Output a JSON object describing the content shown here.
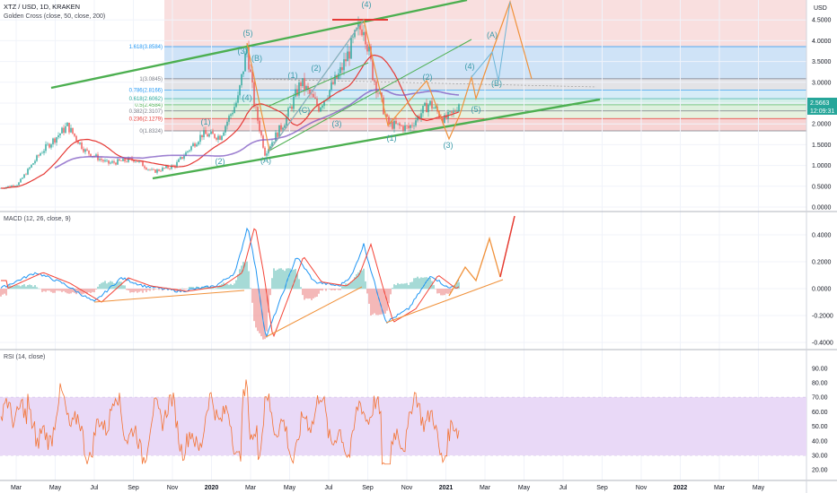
{
  "header": {
    "symbol": "XTZ / USD, 1D, KRAKEN",
    "indicator": "Golden Cross (close, 50, close, 200)",
    "currency": "USD"
  },
  "macd_panel": {
    "title": "MACD (12, 26, close, 9)"
  },
  "rsi_panel": {
    "title": "RSI (14, close)"
  },
  "price_tag": {
    "value": "2.5663",
    "countdown": "12:09:31"
  },
  "colors": {
    "up": "#26a69a",
    "down": "#ef5350",
    "ma50": "#e53935",
    "ma200": "#7e57c2",
    "trend": "#4caf50",
    "projection": "#f0913a",
    "wave_label": "#3a9aa8",
    "rsi_line": "#f37333",
    "rsi_band": "#e9d9f7",
    "macd_line": "#2196f3",
    "signal_line": "#f44336"
  },
  "chart_data": [
    {
      "type": "line",
      "name": "price",
      "ylim": [
        0,
        5.2
      ],
      "yticks": [
        "0.0000",
        "0.5000",
        "1.0000",
        "1.5000",
        "2.0000",
        "2.5000",
        "3.0000",
        "3.5000",
        "4.0000",
        "4.5000"
      ],
      "xticks": [
        "Mar",
        "May",
        "Jul",
        "Sep",
        "Nov",
        "2020",
        "Mar",
        "May",
        "Jul",
        "Sep",
        "Nov",
        "2021",
        "Mar",
        "May",
        "Jul",
        "Sep",
        "Nov",
        "2022",
        "Mar",
        "May"
      ],
      "fib_levels": [
        {
          "label": "1.618(3.8584)",
          "value": 3.8584,
          "color": "#2196f3"
        },
        {
          "label": "1(3.0845)",
          "value": 3.0845,
          "color": "#787b86"
        },
        {
          "label": "0.786(2.8166)",
          "value": 2.8166,
          "color": "#2196f3"
        },
        {
          "label": "0.618(2.6062)",
          "value": 2.6062,
          "color": "#26a69a"
        },
        {
          "label": "0.5(2.4584)",
          "value": 2.4584,
          "color": "#4caf50"
        },
        {
          "label": "0.382(2.3107)",
          "value": 2.3107,
          "color": "#787b86"
        },
        {
          "label": "0.236(2.1279)",
          "value": 2.1279,
          "color": "#e53935"
        },
        {
          "label": "0(1.8324)",
          "value": 1.8324,
          "color": "#787b86"
        }
      ],
      "wave_labels": [
        "(1)",
        "(2)",
        "(3)",
        "(4)",
        "(5)",
        "(A)",
        "(B)",
        "(C)",
        "(1)",
        "(2)",
        "(3)",
        "(4)",
        "(1)",
        "(2)",
        "(3)",
        "(4)",
        "(5)",
        "(A)",
        "(B)",
        "(C)",
        "(1)",
        "(2)",
        "(3)",
        "(4)"
      ],
      "last_value": 2.5663
    },
    {
      "type": "line",
      "name": "macd",
      "yticks": [
        "0.4000",
        "0.2000",
        "0.0000",
        "-0.2000",
        "-0.4000"
      ],
      "ylim": [
        -0.42,
        0.55
      ]
    },
    {
      "type": "line",
      "name": "rsi",
      "yticks": [
        "90.00",
        "80.00",
        "70.00",
        "60.00",
        "50.00",
        "40.00",
        "30.00",
        "20.00"
      ],
      "ylim": [
        18,
        96
      ],
      "band": [
        30,
        70
      ]
    }
  ]
}
